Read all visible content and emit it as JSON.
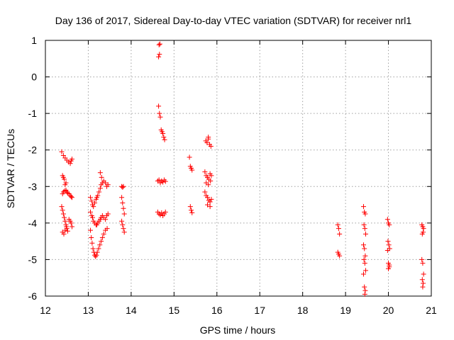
{
  "chart_data": {
    "type": "scatter",
    "title": "Day 136 of 2017, Sidereal Day-to-day VTEC variation (SDTVAR) for receiver nrl1",
    "xlabel": "GPS time / hours",
    "ylabel": "SDTVAR / TECUs",
    "xlim": [
      12,
      21
    ],
    "ylim": [
      -6,
      1
    ],
    "xticks": [
      "12",
      "13",
      "14",
      "15",
      "16",
      "17",
      "18",
      "19",
      "20",
      "21"
    ],
    "yticks": [
      "1",
      "0",
      "-1",
      "-2",
      "-3",
      "-4",
      "-5",
      "-6"
    ],
    "grid": true,
    "marker": "+",
    "marker_color": "#ff0000",
    "clusters": [
      {
        "name": "cluster-12.4-upper",
        "x": [
          12.38,
          12.42,
          12.46,
          12.5,
          12.54,
          12.58,
          12.6,
          12.62
        ],
        "y": [
          -2.05,
          -2.15,
          -2.22,
          -2.28,
          -2.33,
          -2.37,
          -2.3,
          -2.25
        ]
      },
      {
        "name": "cluster-12.4-mid",
        "x": [
          12.4,
          12.42,
          12.44,
          12.46,
          12.48,
          12.5,
          12.52,
          12.55,
          12.58,
          12.6,
          12.62,
          12.4,
          12.42,
          12.45,
          12.48
        ],
        "y": [
          -2.7,
          -2.75,
          -2.8,
          -2.95,
          -3.1,
          -3.15,
          -3.18,
          -3.2,
          -3.25,
          -3.28,
          -3.3,
          -3.2,
          -3.15,
          -3.12,
          -2.9
        ]
      },
      {
        "name": "cluster-12.4-lower",
        "x": [
          12.38,
          12.4,
          12.42,
          12.44,
          12.46,
          12.48,
          12.5,
          12.52,
          12.55,
          12.58,
          12.6,
          12.62,
          12.4,
          12.43,
          12.46,
          12.49
        ],
        "y": [
          -3.55,
          -3.65,
          -3.75,
          -3.85,
          -3.95,
          -4.05,
          -4.15,
          -4.22,
          -3.9,
          -3.95,
          -4.0,
          -4.1,
          -4.25,
          -4.3,
          -4.2,
          -4.1
        ]
      },
      {
        "name": "cluster-13.0-upper",
        "x": [
          13.05,
          13.08,
          13.1,
          13.12,
          13.15,
          13.18,
          13.2,
          13.22,
          13.25,
          13.28,
          13.3,
          13.33,
          13.36,
          13.4,
          13.43,
          13.46
        ],
        "y": [
          -3.3,
          -3.4,
          -3.5,
          -3.55,
          -3.45,
          -3.35,
          -3.3,
          -3.25,
          -3.15,
          -3.05,
          -2.95,
          -2.9,
          -2.85,
          -2.9,
          -3.0,
          -2.95
        ]
      },
      {
        "name": "cluster-13.0-mid",
        "x": [
          13.05,
          13.08,
          13.1,
          13.12,
          13.15,
          13.18,
          13.2,
          13.22,
          13.25,
          13.28,
          13.3,
          13.33,
          13.36,
          13.4,
          13.43,
          13.46
        ],
        "y": [
          -3.7,
          -3.8,
          -3.85,
          -3.95,
          -4.0,
          -4.05,
          -4.05,
          -4.0,
          -3.95,
          -3.9,
          -3.85,
          -3.8,
          -3.85,
          -3.9,
          -3.8,
          -3.75
        ]
      },
      {
        "name": "cluster-13.0-lower",
        "x": [
          13.05,
          13.07,
          13.09,
          13.11,
          13.13,
          13.15,
          13.17,
          13.19,
          13.21,
          13.24,
          13.27,
          13.3,
          13.33,
          13.36,
          13.4,
          13.44
        ],
        "y": [
          -4.2,
          -4.4,
          -4.55,
          -4.7,
          -4.8,
          -4.88,
          -4.92,
          -4.88,
          -4.8,
          -4.7,
          -4.6,
          -4.5,
          -4.4,
          -4.3,
          -4.2,
          -4.15
        ]
      },
      {
        "name": "cluster-13.3-top",
        "x": [
          13.28,
          13.31
        ],
        "y": [
          -2.62,
          -2.75
        ]
      },
      {
        "name": "cluster-13.8",
        "x": [
          13.78,
          13.8,
          13.82,
          13.78,
          13.8,
          13.82,
          13.84,
          13.78,
          13.8,
          13.82,
          13.84
        ],
        "y": [
          -3.0,
          -3.02,
          -3.0,
          -3.3,
          -3.45,
          -3.6,
          -3.75,
          -3.95,
          -4.05,
          -4.15,
          -4.25
        ]
      },
      {
        "name": "cluster-14.7-high",
        "x": [
          14.65,
          14.67,
          14.64,
          14.66
        ],
        "y": [
          0.88,
          0.9,
          0.55,
          0.62
        ]
      },
      {
        "name": "cluster-14.7-descent",
        "x": [
          14.64,
          14.66,
          14.68,
          14.7,
          14.72,
          14.74,
          14.76,
          14.78
        ],
        "y": [
          -0.8,
          -1.0,
          -1.1,
          -1.45,
          -1.5,
          -1.55,
          -1.65,
          -1.72
        ]
      },
      {
        "name": "cluster-14.7-mid",
        "x": [
          14.62,
          14.65,
          14.68,
          14.71,
          14.74,
          14.77,
          14.8
        ],
        "y": [
          -2.85,
          -2.82,
          -2.9,
          -2.85,
          -2.88,
          -2.82,
          -2.86
        ]
      },
      {
        "name": "cluster-14.7-low",
        "x": [
          14.62,
          14.65,
          14.68,
          14.71,
          14.74,
          14.77,
          14.8
        ],
        "y": [
          -3.7,
          -3.75,
          -3.78,
          -3.72,
          -3.8,
          -3.75,
          -3.7
        ]
      },
      {
        "name": "cluster-15.4",
        "x": [
          15.36,
          15.38,
          15.4,
          15.42,
          15.38,
          15.4,
          15.42
        ],
        "y": [
          -2.2,
          -2.45,
          -2.5,
          -2.55,
          -3.55,
          -3.65,
          -3.72
        ]
      },
      {
        "name": "cluster-15.8-upper",
        "x": [
          15.74,
          15.77,
          15.8,
          15.83,
          15.86,
          15.8
        ],
        "y": [
          -1.75,
          -1.8,
          -1.65,
          -1.85,
          -1.9,
          -1.7
        ]
      },
      {
        "name": "cluster-15.8-mid",
        "x": [
          15.72,
          15.75,
          15.78,
          15.81,
          15.84,
          15.87,
          15.75,
          15.8,
          15.85
        ],
        "y": [
          -2.6,
          -2.7,
          -2.75,
          -2.8,
          -2.65,
          -2.7,
          -2.9,
          -2.95,
          -2.85
        ]
      },
      {
        "name": "cluster-15.8-lower",
        "x": [
          15.72,
          15.75,
          15.78,
          15.81,
          15.84,
          15.87,
          15.78,
          15.84
        ],
        "y": [
          -3.15,
          -3.25,
          -3.3,
          -3.38,
          -3.42,
          -3.35,
          -3.5,
          -3.55
        ]
      },
      {
        "name": "cluster-18.8",
        "x": [
          18.82,
          18.84,
          18.86,
          18.82,
          18.84,
          18.86
        ],
        "y": [
          -4.05,
          -4.15,
          -4.3,
          -4.8,
          -4.85,
          -4.9
        ]
      },
      {
        "name": "cluster-19.4",
        "x": [
          19.42,
          19.44,
          19.46,
          19.43,
          19.45,
          19.47,
          19.42,
          19.44,
          19.46,
          19.43,
          19.45,
          19.47,
          19.42,
          19.44,
          19.46,
          19.45
        ],
        "y": [
          -3.55,
          -3.7,
          -3.75,
          -4.05,
          -4.15,
          -4.3,
          -4.6,
          -4.7,
          -4.9,
          -5.0,
          -5.1,
          -5.3,
          -5.4,
          -5.75,
          -5.85,
          -5.95
        ]
      },
      {
        "name": "cluster-20.0",
        "x": [
          19.98,
          20.0,
          20.02,
          19.99,
          20.01,
          20.03,
          19.98,
          20.0,
          20.02,
          20.0,
          20.02
        ],
        "y": [
          -3.9,
          -4.0,
          -4.05,
          -4.5,
          -4.6,
          -4.7,
          -4.75,
          -5.1,
          -5.2,
          -5.25,
          -5.15
        ]
      },
      {
        "name": "cluster-20.8",
        "x": [
          20.78,
          20.8,
          20.82,
          20.79,
          20.81,
          20.78,
          20.8,
          20.82,
          20.79,
          20.81,
          20.8
        ],
        "y": [
          -4.05,
          -4.1,
          -4.15,
          -4.3,
          -4.25,
          -5.0,
          -5.1,
          -5.4,
          -5.55,
          -5.65,
          -5.75
        ]
      }
    ]
  }
}
